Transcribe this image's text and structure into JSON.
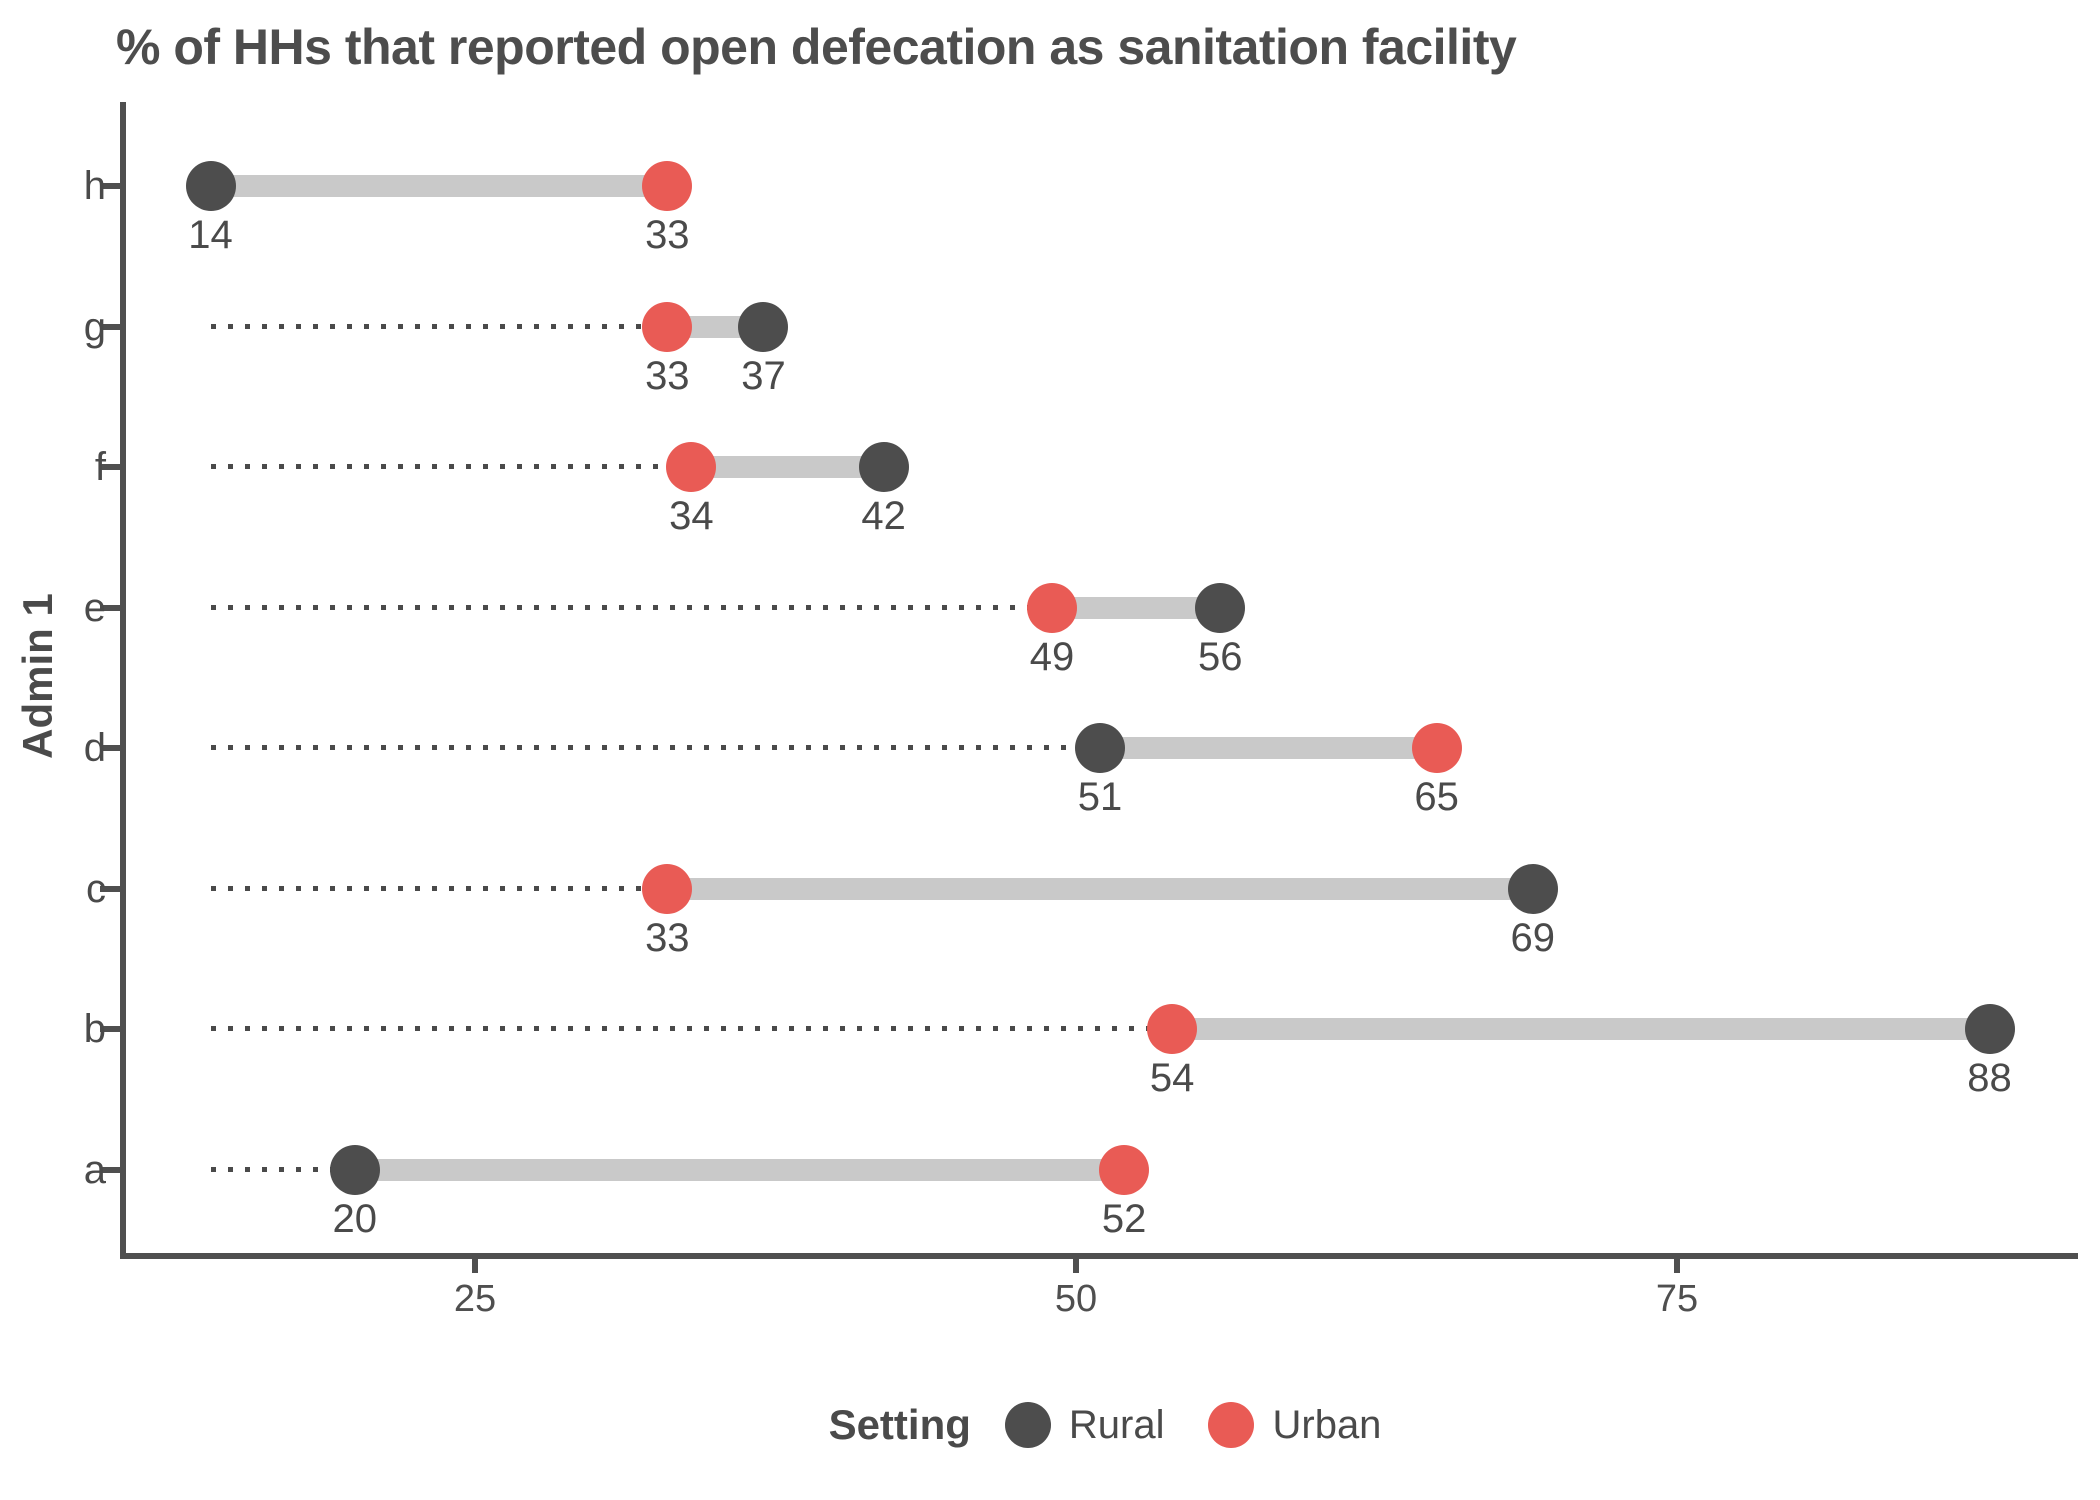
{
  "chart_data": {
    "type": "dumbbell",
    "title": "% of HHs that reported open defecation as sanitation facility",
    "xlabel": "",
    "ylabel": "Admin 1",
    "x_ticks": [
      25,
      50,
      75
    ],
    "xlim": [
      10,
      92
    ],
    "global_min": 14,
    "grid": "off",
    "legend_position": "bottom",
    "legend": {
      "title": "Setting",
      "items": [
        {
          "label": "Rural",
          "color": "#4d4d4d"
        },
        {
          "label": "Urban",
          "color": "#e95b55"
        }
      ]
    },
    "categories_top_to_bottom": [
      "h",
      "g",
      "f",
      "e",
      "d",
      "c",
      "b",
      "a"
    ],
    "series": [
      {
        "name": "Rural",
        "values": [
          14,
          37,
          42,
          56,
          51,
          69,
          88,
          20
        ]
      },
      {
        "name": "Urban",
        "values": [
          33,
          33,
          34,
          49,
          65,
          33,
          54,
          52
        ]
      }
    ],
    "rows": [
      {
        "category": "h",
        "rural": 14,
        "urban": 33
      },
      {
        "category": "g",
        "rural": 37,
        "urban": 33
      },
      {
        "category": "f",
        "rural": 42,
        "urban": 34
      },
      {
        "category": "e",
        "rural": 56,
        "urban": 49
      },
      {
        "category": "d",
        "rural": 51,
        "urban": 65
      },
      {
        "category": "c",
        "rural": 69,
        "urban": 33
      },
      {
        "category": "b",
        "rural": 88,
        "urban": 54
      },
      {
        "category": "a",
        "rural": 20,
        "urban": 52
      }
    ],
    "colors": {
      "rural": "#4d4d4d",
      "urban": "#e95b55",
      "connector": "#c9c9c9",
      "leader": "#4a4a4a",
      "axis": "#4f4f4f",
      "text": "#4a4a4a"
    }
  }
}
